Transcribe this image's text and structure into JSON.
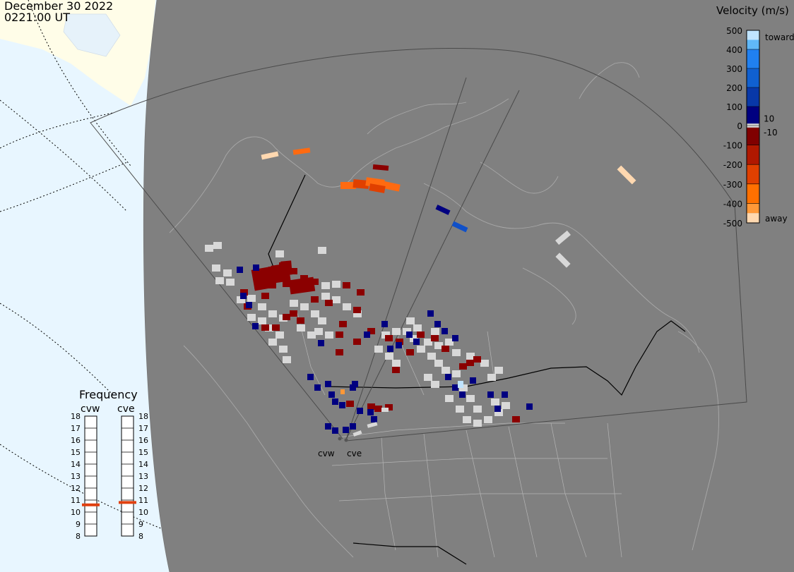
{
  "header": {
    "date": "December 30 2022",
    "time": "0221:00 UT"
  },
  "colorbar": {
    "title": "Velocity (m/s)",
    "ticks": [
      {
        "label": "500",
        "value": 500
      },
      {
        "label": "400",
        "value": 400
      },
      {
        "label": "300",
        "value": 300
      },
      {
        "label": "200",
        "value": 200
      },
      {
        "label": "100",
        "value": 100
      },
      {
        "label": "0",
        "value": 0
      },
      {
        "label": "-100",
        "value": -100
      },
      {
        "label": "-200",
        "value": -200
      },
      {
        "label": "-300",
        "value": -300
      },
      {
        "label": "-400",
        "value": -400
      },
      {
        "label": "-500",
        "value": -500
      }
    ],
    "inner_labels": [
      {
        "label": "10",
        "value": 10
      },
      {
        "label": "-10",
        "value": -10
      }
    ],
    "toward_label": "toward",
    "away_label": "away",
    "toward_colors": [
      "#000080",
      "#0838a8",
      "#1060d0",
      "#2080f0",
      "#60b8f8",
      "#c0e4ff"
    ],
    "away_colors": [
      "#800000",
      "#b01800",
      "#e04000",
      "#ff7000",
      "#ff9838",
      "#ffd8b0"
    ],
    "ground_scatter_color": "#d8d8d8"
  },
  "frequency": {
    "title": "Frequency",
    "radars": [
      {
        "name": "cvw",
        "freq_mhz": 10.6
      },
      {
        "name": "cve",
        "freq_mhz": 10.8
      }
    ],
    "scale": [
      "8",
      "9",
      "10",
      "11",
      "12",
      "13",
      "14",
      "15",
      "16",
      "17",
      "18"
    ],
    "marker_color": "#e04010"
  },
  "map": {
    "land_color": "#808080",
    "daylight_color": "#e8f6ff",
    "ice_color": "#fffde8",
    "radar_sites": [
      {
        "name": "cvw"
      },
      {
        "name": "cve"
      }
    ]
  }
}
